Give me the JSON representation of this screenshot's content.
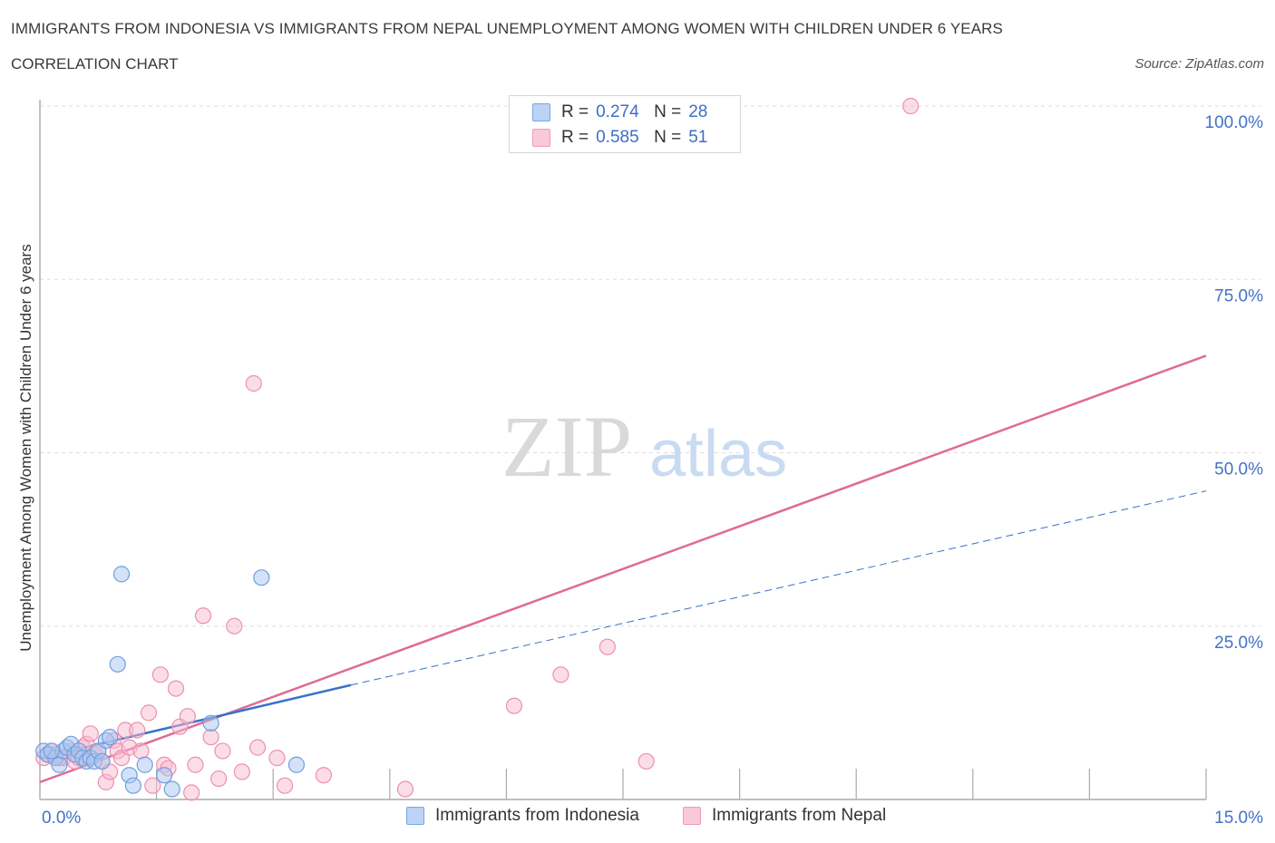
{
  "header": {
    "title": "IMMIGRANTS FROM INDONESIA VS IMMIGRANTS FROM NEPAL UNEMPLOYMENT AMONG WOMEN WITH CHILDREN UNDER 6 YEARS",
    "subtitle": "CORRELATION CHART",
    "source": "Source: ZipAtlas.com"
  },
  "watermark": {
    "zip": "ZIP",
    "atlas": "atlas"
  },
  "legend": {
    "rows": [
      {
        "r_label": "R =",
        "r_value": "0.274",
        "n_label": "N =",
        "n_value": "28"
      },
      {
        "r_label": "R =",
        "r_value": "0.585",
        "n_label": "N =",
        "n_value": "51"
      }
    ]
  },
  "colors": {
    "indonesia_fill": "#a9c6f0",
    "indonesia_stroke": "#6f9fe0",
    "indonesia_line": "#3a72c8",
    "nepal_fill": "#f7bcd0",
    "nepal_stroke": "#ee8fae",
    "nepal_line": "#e06a94",
    "tick_label": "#4472c4",
    "grid": "#dddddd"
  },
  "chart_data": {
    "type": "scatter",
    "title": "IMMIGRANTS FROM INDONESIA VS IMMIGRANTS FROM NEPAL UNEMPLOYMENT AMONG WOMEN WITH CHILDREN UNDER 6 YEARS",
    "xlabel": "",
    "ylabel": "Unemployment Among Women with Children Under 6 years",
    "xlim": [
      0,
      15
    ],
    "ylim": [
      0,
      100
    ],
    "x_tick_labels": [
      "0.0%",
      "15.0%"
    ],
    "y_ticks": [
      25,
      50,
      75,
      100
    ],
    "y_tick_labels": [
      "25.0%",
      "50.0%",
      "75.0%",
      "100.0%"
    ],
    "grid": true,
    "series": [
      {
        "name": "Immigrants from Indonesia",
        "color": "#a9c6f0",
        "R": 0.274,
        "N": 28,
        "points": [
          [
            0.05,
            7.0
          ],
          [
            0.1,
            6.5
          ],
          [
            0.2,
            6.0
          ],
          [
            0.25,
            5.0
          ],
          [
            0.3,
            7.0
          ],
          [
            0.35,
            7.5
          ],
          [
            0.4,
            8.0
          ],
          [
            0.45,
            6.5
          ],
          [
            0.5,
            7.0
          ],
          [
            0.55,
            6.0
          ],
          [
            0.6,
            5.5
          ],
          [
            0.65,
            6.0
          ],
          [
            0.7,
            5.5
          ],
          [
            0.75,
            7.0
          ],
          [
            0.8,
            5.5
          ],
          [
            0.85,
            8.5
          ],
          [
            0.9,
            9.0
          ],
          [
            1.0,
            19.5
          ],
          [
            1.05,
            32.5
          ],
          [
            1.15,
            3.5
          ],
          [
            1.2,
            2.0
          ],
          [
            1.35,
            5.0
          ],
          [
            1.6,
            3.5
          ],
          [
            1.7,
            1.5
          ],
          [
            2.2,
            11.0
          ],
          [
            2.85,
            32.0
          ],
          [
            3.3,
            5.0
          ],
          [
            0.15,
            7.0
          ]
        ],
        "trend": {
          "x": [
            0.0,
            4.0
          ],
          "y": [
            6.0,
            16.5
          ],
          "style": "solid"
        },
        "trend_extension": {
          "x": [
            4.0,
            15.0
          ],
          "y": [
            16.5,
            44.5
          ],
          "style": "dashed"
        }
      },
      {
        "name": "Immigrants from Nepal",
        "color": "#f7bcd0",
        "R": 0.585,
        "N": 51,
        "points": [
          [
            0.05,
            6.0
          ],
          [
            0.1,
            6.5
          ],
          [
            0.15,
            7.0
          ],
          [
            0.2,
            6.5
          ],
          [
            0.3,
            6.0
          ],
          [
            0.4,
            7.0
          ],
          [
            0.45,
            5.5
          ],
          [
            0.5,
            6.0
          ],
          [
            0.55,
            7.5
          ],
          [
            0.6,
            8.0
          ],
          [
            0.65,
            9.5
          ],
          [
            0.7,
            6.5
          ],
          [
            0.75,
            7.0
          ],
          [
            0.8,
            5.5
          ],
          [
            0.85,
            2.5
          ],
          [
            0.9,
            4.0
          ],
          [
            0.95,
            8.5
          ],
          [
            1.0,
            7.0
          ],
          [
            1.05,
            6.0
          ],
          [
            1.1,
            10.0
          ],
          [
            1.15,
            7.5
          ],
          [
            1.25,
            10.0
          ],
          [
            1.3,
            7.0
          ],
          [
            1.4,
            12.5
          ],
          [
            1.45,
            2.0
          ],
          [
            1.55,
            18.0
          ],
          [
            1.6,
            5.0
          ],
          [
            1.65,
            4.5
          ],
          [
            1.75,
            16.0
          ],
          [
            1.8,
            10.5
          ],
          [
            1.9,
            12.0
          ],
          [
            1.95,
            1.0
          ],
          [
            2.0,
            5.0
          ],
          [
            2.1,
            26.5
          ],
          [
            2.2,
            9.0
          ],
          [
            2.3,
            3.0
          ],
          [
            2.35,
            7.0
          ],
          [
            2.5,
            25.0
          ],
          [
            2.6,
            4.0
          ],
          [
            2.75,
            60.0
          ],
          [
            2.8,
            7.5
          ],
          [
            3.05,
            6.0
          ],
          [
            3.15,
            2.0
          ],
          [
            3.65,
            3.5
          ],
          [
            4.7,
            1.5
          ],
          [
            6.1,
            13.5
          ],
          [
            6.7,
            18.0
          ],
          [
            7.3,
            22.0
          ],
          [
            7.8,
            5.5
          ],
          [
            11.2,
            100.0
          ],
          [
            0.25,
            6.0
          ]
        ],
        "trend": {
          "x": [
            0.0,
            15.0
          ],
          "y": [
            2.5,
            64.0
          ],
          "style": "solid"
        }
      }
    ]
  }
}
